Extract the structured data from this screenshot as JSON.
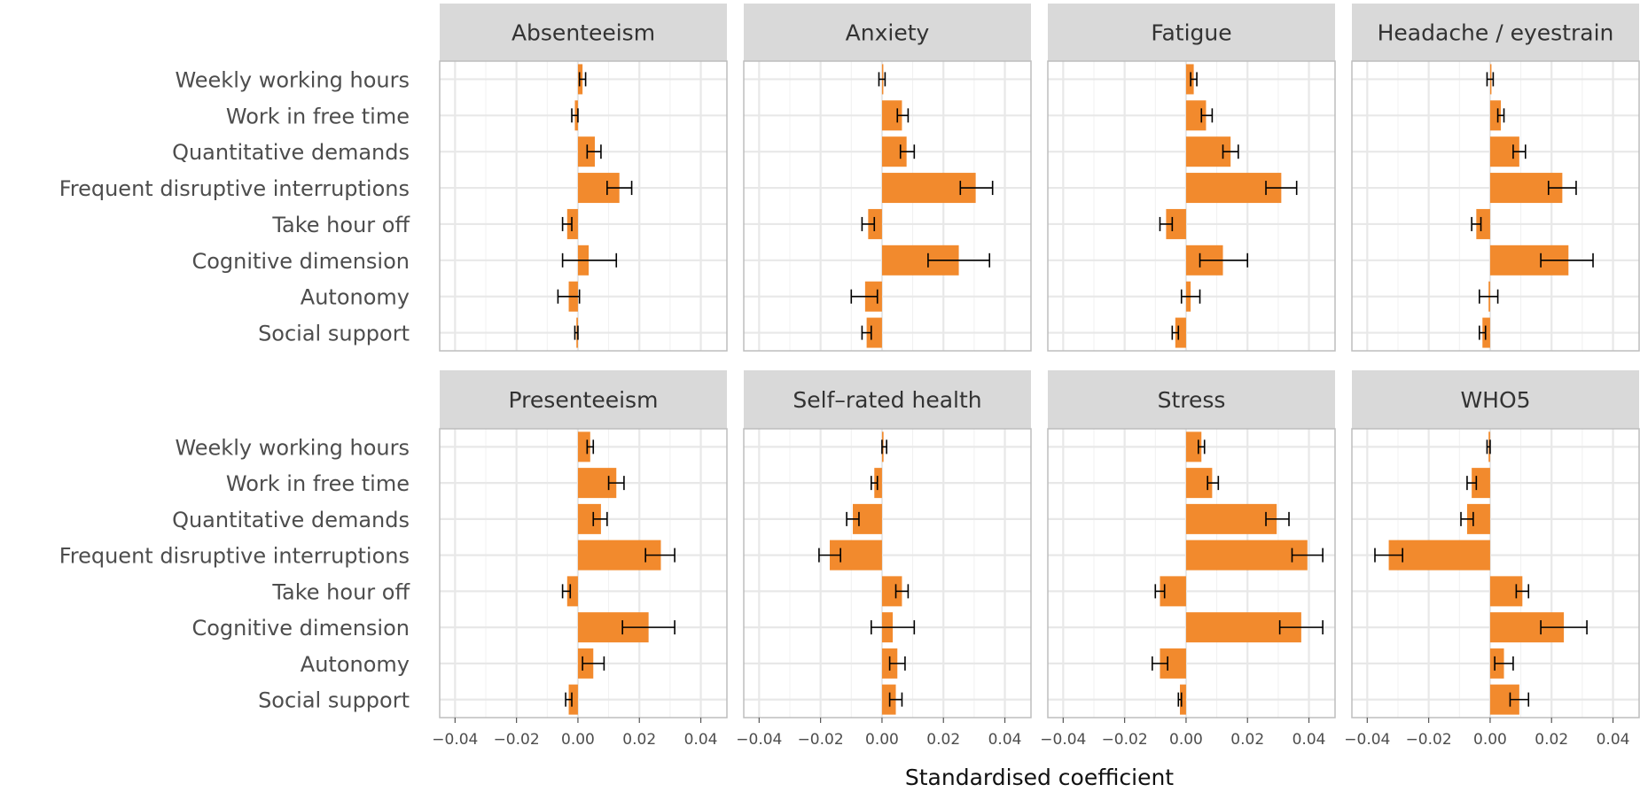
{
  "chart_data": {
    "type": "bar",
    "layout": "faceted horizontal bar chart with error bars, 2 rows x 4 columns",
    "xlabel": "Standardised coefficient",
    "xlim": [
      -0.045,
      0.0485
    ],
    "xticks": [
      -0.04,
      -0.02,
      0.0,
      0.02,
      0.04
    ],
    "xtick_labels": [
      "−0.04",
      "−0.02",
      "0.00",
      "0.02",
      "0.04"
    ],
    "grid": true,
    "colors": {
      "bar": "#F28A2D",
      "strip": "#D9D9D9",
      "grid": "#E8E8E8",
      "panel_border": "#BDBDBD",
      "errorbar": "#000000"
    },
    "categories": [
      "Weekly working hours",
      "Work in free time",
      "Quantitative demands",
      "Frequent disruptive interruptions",
      "Take hour off",
      "Cognitive dimension",
      "Autonomy",
      "Social support"
    ],
    "facets": [
      {
        "title": "Absenteeism",
        "values": [
          0.0015,
          -0.001,
          0.0055,
          0.0135,
          -0.0035,
          0.0035,
          -0.003,
          -0.0005
        ],
        "ci_low": [
          0.0005,
          -0.002,
          0.003,
          0.0095,
          -0.005,
          -0.005,
          -0.0065,
          -0.001
        ],
        "ci_high": [
          0.0025,
          0.0,
          0.0075,
          0.0175,
          -0.002,
          0.0125,
          0.0005,
          0.0
        ]
      },
      {
        "title": "Anxiety",
        "values": [
          0.0,
          0.0065,
          0.008,
          0.0305,
          -0.0045,
          0.025,
          -0.0055,
          -0.005
        ],
        "ci_low": [
          -0.001,
          0.005,
          0.006,
          0.0255,
          -0.0065,
          0.015,
          -0.01,
          -0.0065
        ],
        "ci_high": [
          0.001,
          0.0085,
          0.0105,
          0.036,
          -0.0025,
          0.035,
          -0.0015,
          -0.0035
        ]
      },
      {
        "title": "Fatigue",
        "values": [
          0.0025,
          0.0065,
          0.0145,
          0.031,
          -0.0065,
          0.012,
          0.0015,
          -0.0035
        ],
        "ci_low": [
          0.0015,
          0.005,
          0.012,
          0.026,
          -0.0085,
          0.0045,
          -0.0015,
          -0.0045
        ],
        "ci_high": [
          0.0035,
          0.0085,
          0.017,
          0.036,
          -0.0045,
          0.02,
          0.0045,
          -0.0025
        ]
      },
      {
        "title": "Headache / eyestrain",
        "values": [
          0.0,
          0.0035,
          0.0095,
          0.0235,
          -0.0045,
          0.0255,
          -0.0005,
          -0.0025
        ],
        "ci_low": [
          -0.001,
          0.0025,
          0.0075,
          0.019,
          -0.006,
          0.0165,
          -0.0035,
          -0.0035
        ],
        "ci_high": [
          0.001,
          0.0045,
          0.0115,
          0.028,
          -0.003,
          0.0335,
          0.0025,
          -0.0015
        ]
      },
      {
        "title": "Presenteeism",
        "values": [
          0.004,
          0.0125,
          0.0075,
          0.027,
          -0.0035,
          0.023,
          0.005,
          -0.003
        ],
        "ci_low": [
          0.003,
          0.01,
          0.005,
          0.022,
          -0.005,
          0.0145,
          0.0015,
          -0.004
        ],
        "ci_high": [
          0.005,
          0.015,
          0.0095,
          0.0315,
          -0.0025,
          0.0315,
          0.0085,
          -0.002
        ]
      },
      {
        "title": "Self–rated health",
        "values": [
          0.0005,
          -0.0025,
          -0.0095,
          -0.017,
          0.0065,
          0.0035,
          0.005,
          0.0045
        ],
        "ci_low": [
          0.0,
          -0.0035,
          -0.0115,
          -0.0205,
          0.0045,
          -0.0035,
          0.0025,
          0.0025
        ],
        "ci_high": [
          0.0015,
          -0.0015,
          -0.0075,
          -0.0135,
          0.0085,
          0.0105,
          0.0075,
          0.0065
        ]
      },
      {
        "title": "Stress",
        "values": [
          0.005,
          0.0085,
          0.0295,
          0.0395,
          -0.0085,
          0.0375,
          -0.0085,
          -0.002
        ],
        "ci_low": [
          0.004,
          0.007,
          0.026,
          0.0345,
          -0.01,
          0.0305,
          -0.011,
          -0.0025
        ],
        "ci_high": [
          0.006,
          0.0105,
          0.0335,
          0.0445,
          -0.007,
          0.0445,
          -0.006,
          -0.0015
        ]
      },
      {
        "title": "WHO5",
        "values": [
          -0.0005,
          -0.006,
          -0.0075,
          -0.033,
          0.0105,
          0.024,
          0.0045,
          0.0095
        ],
        "ci_low": [
          -0.001,
          -0.0075,
          -0.0095,
          -0.0375,
          0.0085,
          0.0165,
          0.0015,
          0.0065
        ],
        "ci_high": [
          0.0,
          -0.0045,
          -0.0055,
          -0.0285,
          0.0125,
          0.0315,
          0.0075,
          0.0125
        ]
      }
    ]
  }
}
